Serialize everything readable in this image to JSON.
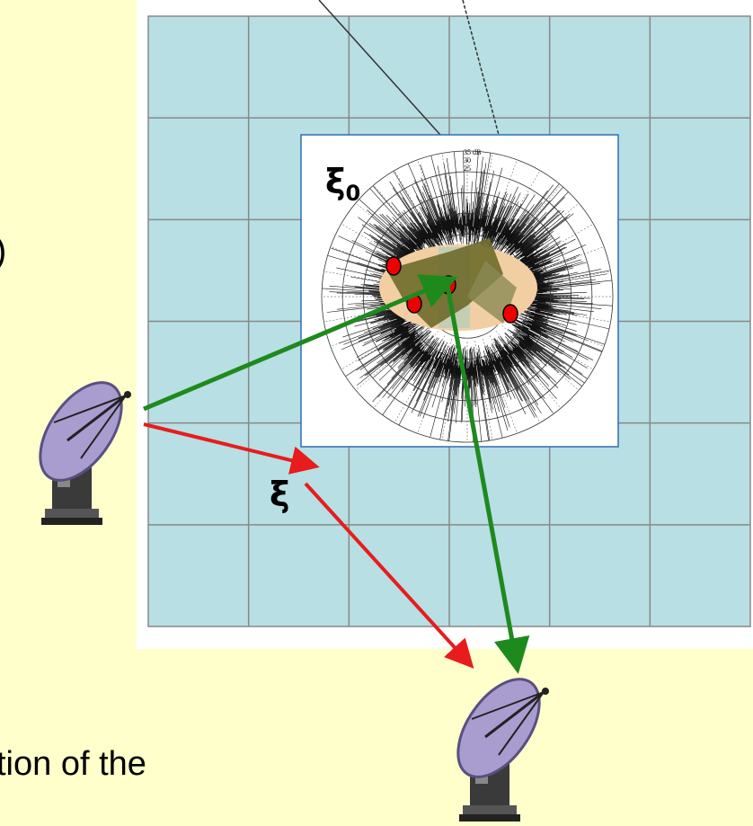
{
  "diagram": {
    "left_fragment": ")",
    "xi0_symbol": "ξ",
    "xi0_subscript": "0",
    "xi_symbol": "ξ",
    "polar_labels": [
      "35 dB",
      "30",
      "25"
    ],
    "caption_fragment": "tion of the"
  }
}
